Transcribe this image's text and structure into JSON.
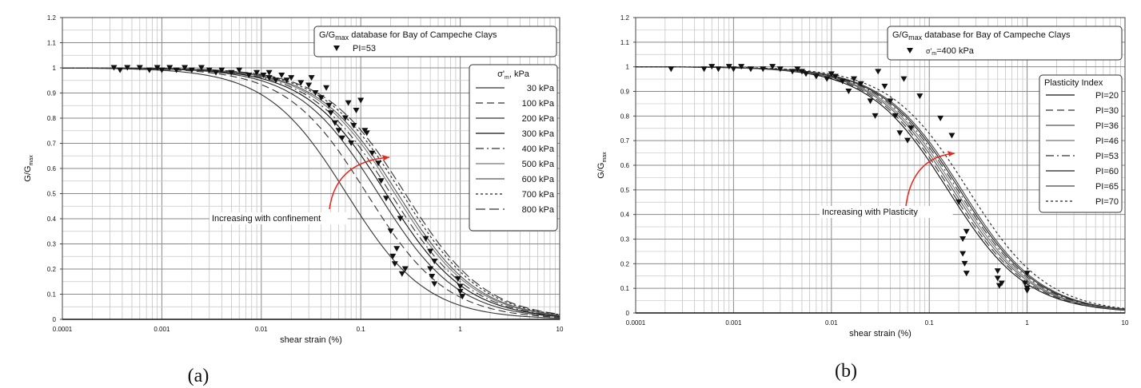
{
  "chart_data": [
    {
      "type": "line",
      "panel_label": "(a)",
      "xlabel": "shear strain (%)",
      "ylabel": "G/G",
      "ylabel_sub": "max",
      "x_scale": "log",
      "xlim": [
        0.0001,
        10
      ],
      "ylim": [
        0,
        1.2
      ],
      "x_ticks": [
        "0.0001",
        "0.001",
        "0.01",
        "0.1",
        "1",
        "10"
      ],
      "y_ticks": [
        "0",
        "0.1",
        "0.2",
        "0.3",
        "0.4",
        "0.5",
        "0.6",
        "0.7",
        "0.8",
        "0.9",
        "1",
        "1.1",
        "1.2"
      ],
      "grid": true,
      "title_box": {
        "line1_pre": "G/G",
        "line1_sub": "max",
        "line1_post": " database for Bay of Campeche Clays",
        "marker_label": "PI=53"
      },
      "legend": {
        "position": "right",
        "title_sigma": "σ'",
        "title_sub": "m",
        "title_post": ", kPa",
        "entries": [
          "30 kPa",
          "100 kPa",
          "200 kPa",
          "300 kPa",
          "400 kPa",
          "500 kPa",
          "600 kPa",
          "700 kPa",
          "800 kPa"
        ]
      },
      "annotation": "Increasing with confinement",
      "series": [
        {
          "gamma_ref": 0.072,
          "dash": "",
          "color": "#333333"
        },
        {
          "gamma_ref": 0.115,
          "dash": "9,5",
          "color": "#333333"
        },
        {
          "gamma_ref": 0.15,
          "dash": "",
          "color": "#333333"
        },
        {
          "gamma_ref": 0.18,
          "dash": "",
          "color": "#111111"
        },
        {
          "gamma_ref": 0.2,
          "dash": "10,4,2,4",
          "color": "#333333"
        },
        {
          "gamma_ref": 0.22,
          "dash": "",
          "color": "#777777"
        },
        {
          "gamma_ref": 0.235,
          "dash": "",
          "color": "#555555"
        },
        {
          "gamma_ref": 0.26,
          "dash": "3,3",
          "color": "#222222"
        },
        {
          "gamma_ref": 0.28,
          "dash": "12,5",
          "color": "#333333"
        }
      ],
      "points": [
        [
          0.00033,
          1.0
        ],
        [
          0.00038,
          0.99
        ],
        [
          0.00045,
          1.0
        ],
        [
          0.0006,
          1.0
        ],
        [
          0.00075,
          0.99
        ],
        [
          0.0009,
          1.0
        ],
        [
          0.001,
          0.99
        ],
        [
          0.0012,
          1.0
        ],
        [
          0.0014,
          0.99
        ],
        [
          0.0017,
          1.0
        ],
        [
          0.002,
          0.99
        ],
        [
          0.0025,
          1.0
        ],
        [
          0.003,
          0.99
        ],
        [
          0.0035,
          0.98
        ],
        [
          0.004,
          0.99
        ],
        [
          0.005,
          0.98
        ],
        [
          0.006,
          0.99
        ],
        [
          0.0075,
          0.97
        ],
        [
          0.009,
          0.98
        ],
        [
          0.0105,
          0.97
        ],
        [
          0.012,
          0.96
        ],
        [
          0.014,
          0.95
        ],
        [
          0.012,
          0.98
        ],
        [
          0.016,
          0.97
        ],
        [
          0.018,
          0.95
        ],
        [
          0.02,
          0.96
        ],
        [
          0.025,
          0.94
        ],
        [
          0.03,
          0.93
        ],
        [
          0.032,
          0.96
        ],
        [
          0.035,
          0.9
        ],
        [
          0.04,
          0.88
        ],
        [
          0.045,
          0.92
        ],
        [
          0.048,
          0.85
        ],
        [
          0.05,
          0.82
        ],
        [
          0.055,
          0.78
        ],
        [
          0.06,
          0.75
        ],
        [
          0.065,
          0.72
        ],
        [
          0.07,
          0.8
        ],
        [
          0.075,
          0.86
        ],
        [
          0.08,
          0.7
        ],
        [
          0.085,
          0.77
        ],
        [
          0.09,
          0.83
        ],
        [
          0.1,
          0.87
        ],
        [
          0.11,
          0.75
        ],
        [
          0.115,
          0.74
        ],
        [
          0.13,
          0.66
        ],
        [
          0.15,
          0.62
        ],
        [
          0.16,
          0.55
        ],
        [
          0.18,
          0.48
        ],
        [
          0.2,
          0.35
        ],
        [
          0.21,
          0.25
        ],
        [
          0.22,
          0.22
        ],
        [
          0.23,
          0.28
        ],
        [
          0.25,
          0.4
        ],
        [
          0.26,
          0.18
        ],
        [
          0.28,
          0.2
        ],
        [
          0.45,
          0.32
        ],
        [
          0.5,
          0.27
        ],
        [
          0.5,
          0.2
        ],
        [
          0.52,
          0.17
        ],
        [
          0.55,
          0.14
        ],
        [
          0.55,
          0.23
        ],
        [
          0.95,
          0.16
        ],
        [
          1.0,
          0.13
        ],
        [
          1.0,
          0.11
        ],
        [
          1.05,
          0.09
        ]
      ]
    },
    {
      "type": "line",
      "panel_label": "(b)",
      "xlabel": "shear strain (%)",
      "ylabel": "G/G",
      "ylabel_sub": "max",
      "x_scale": "log",
      "xlim": [
        0.0001,
        10
      ],
      "ylim": [
        0,
        1.2
      ],
      "x_ticks": [
        "0.0001",
        "0.001",
        "0.01",
        "0.1",
        "1",
        "10"
      ],
      "y_ticks": [
        "0",
        "0.1",
        "0.2",
        "0.3",
        "0.4",
        "0.5",
        "0.6",
        "0.7",
        "0.8",
        "0.9",
        "1",
        "1.1",
        "1.2"
      ],
      "grid": true,
      "title_box": {
        "line1_pre": "G/G",
        "line1_sub": "max",
        "line1_post": " database for Bay of Campeche Clays",
        "marker_label_pre": "σ'",
        "marker_label_sub": "m",
        "marker_label_post": "=400 kPa"
      },
      "legend": {
        "position": "right",
        "title": "Plasticity Index",
        "entries": [
          "PI=20",
          "PI=30",
          "PI=36",
          "PI=46",
          "PI=53",
          "PI=60",
          "PI=65",
          "PI=70"
        ]
      },
      "annotation": "Increasing with Plasticity",
      "series": [
        {
          "gamma_ref": 0.155,
          "dash": "",
          "color": "#111111"
        },
        {
          "gamma_ref": 0.165,
          "dash": "9,5",
          "color": "#333333"
        },
        {
          "gamma_ref": 0.175,
          "dash": "",
          "color": "#555555"
        },
        {
          "gamma_ref": 0.185,
          "dash": "",
          "color": "#777777"
        },
        {
          "gamma_ref": 0.195,
          "dash": "10,4,2,4",
          "color": "#333333"
        },
        {
          "gamma_ref": 0.205,
          "dash": "",
          "color": "#222222"
        },
        {
          "gamma_ref": 0.215,
          "dash": "",
          "color": "#444444"
        },
        {
          "gamma_ref": 0.25,
          "dash": "3,3",
          "color": "#222222"
        }
      ],
      "points": [
        [
          0.00023,
          0.99
        ],
        [
          0.0005,
          0.99
        ],
        [
          0.0006,
          1.0
        ],
        [
          0.0007,
          0.99
        ],
        [
          0.0009,
          1.0
        ],
        [
          0.001,
          0.99
        ],
        [
          0.0012,
          1.0
        ],
        [
          0.0015,
          0.99
        ],
        [
          0.002,
          0.99
        ],
        [
          0.0025,
          1.0
        ],
        [
          0.003,
          0.99
        ],
        [
          0.004,
          0.98
        ],
        [
          0.0045,
          0.99
        ],
        [
          0.005,
          0.98
        ],
        [
          0.0055,
          0.97
        ],
        [
          0.007,
          0.96
        ],
        [
          0.009,
          0.95
        ],
        [
          0.01,
          0.97
        ],
        [
          0.011,
          0.96
        ],
        [
          0.013,
          0.94
        ],
        [
          0.015,
          0.9
        ],
        [
          0.017,
          0.95
        ],
        [
          0.02,
          0.93
        ],
        [
          0.025,
          0.86
        ],
        [
          0.028,
          0.8
        ],
        [
          0.03,
          0.98
        ],
        [
          0.035,
          0.92
        ],
        [
          0.04,
          0.86
        ],
        [
          0.045,
          0.8
        ],
        [
          0.05,
          0.73
        ],
        [
          0.055,
          0.95
        ],
        [
          0.06,
          0.7
        ],
        [
          0.065,
          0.75
        ],
        [
          0.08,
          0.88
        ],
        [
          0.13,
          0.79
        ],
        [
          0.17,
          0.72
        ],
        [
          0.2,
          0.45
        ],
        [
          0.22,
          0.3
        ],
        [
          0.22,
          0.24
        ],
        [
          0.23,
          0.2
        ],
        [
          0.24,
          0.16
        ],
        [
          0.24,
          0.33
        ],
        [
          0.5,
          0.17
        ],
        [
          0.5,
          0.14
        ],
        [
          0.52,
          0.11
        ],
        [
          0.55,
          0.12
        ],
        [
          0.95,
          0.12
        ],
        [
          1.0,
          0.1
        ],
        [
          1.0,
          0.09
        ],
        [
          1.0,
          0.16
        ]
      ]
    }
  ]
}
